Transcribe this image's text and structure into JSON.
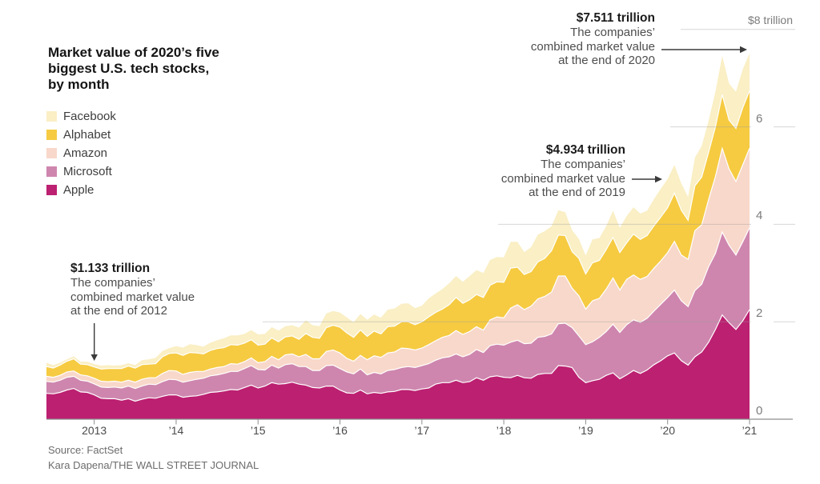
{
  "header": {
    "title_lines": {
      "l1": "Market value of 2020’s five",
      "l2": "biggest U.S. tech stocks,",
      "l3": "by month"
    }
  },
  "annotations": {
    "end2020": {
      "value": "$7.511 trillion",
      "l1": "The companies’",
      "l2": "combined market value",
      "l3": "at the end of 2020"
    },
    "end2019": {
      "value": "$4.934 trillion",
      "l1": "The companies’",
      "l2": "combined market value",
      "l3": "at the end of 2019"
    },
    "end2012": {
      "value": "$1.133 trillion",
      "l1": "The companies’",
      "l2": "combined market value",
      "l3": "at the end of 2012"
    }
  },
  "footer": {
    "source": "Source: FactSet",
    "credit": "Kara Dapena/THE WALL STREET JOURNAL"
  },
  "chart_data": {
    "type": "area",
    "stacked": true,
    "title": "Market value of 2020’s five biggest U.S. tech stocks, by month",
    "x_unit": "month",
    "x_range": [
      "2012-05",
      "2020-12"
    ],
    "ylim": [
      0,
      8
    ],
    "y_unit": "trillion USD",
    "grid": "partial-right",
    "legend_position": "top-left",
    "y_ticks": [
      {
        "v": 8,
        "label": "$8 trillion"
      },
      {
        "v": 6,
        "label": "6"
      },
      {
        "v": 4,
        "label": "4"
      },
      {
        "v": 2,
        "label": "2"
      },
      {
        "v": 0,
        "label": "0"
      }
    ],
    "x_ticks": [
      {
        "i": 7,
        "label": "2013"
      },
      {
        "i": 19,
        "label": "’14"
      },
      {
        "i": 31,
        "label": "’15"
      },
      {
        "i": 43,
        "label": "’16"
      },
      {
        "i": 55,
        "label": "’17"
      },
      {
        "i": 67,
        "label": "’18"
      },
      {
        "i": 79,
        "label": "’19"
      },
      {
        "i": 91,
        "label": "’20"
      },
      {
        "i": 103,
        "label": "’21"
      }
    ],
    "stack_bottom_to_top": [
      "Apple",
      "Microsoft",
      "Amazon",
      "Alphabet",
      "Facebook"
    ],
    "key_points": [
      {
        "date": "2012-12",
        "total": 1.133
      },
      {
        "date": "2019-12",
        "total": 4.934
      },
      {
        "date": "2020-12",
        "total": 7.511
      }
    ],
    "series": [
      {
        "name": "Facebook",
        "color": "#FAEFC5",
        "values": [
          0.08,
          0.06,
          0.05,
          0.04,
          0.05,
          0.05,
          0.06,
          0.06,
          0.07,
          0.07,
          0.06,
          0.07,
          0.06,
          0.06,
          0.09,
          0.1,
          0.12,
          0.12,
          0.11,
          0.14,
          0.16,
          0.17,
          0.16,
          0.15,
          0.16,
          0.17,
          0.19,
          0.19,
          0.2,
          0.19,
          0.2,
          0.22,
          0.21,
          0.22,
          0.23,
          0.22,
          0.22,
          0.24,
          0.27,
          0.25,
          0.25,
          0.29,
          0.29,
          0.3,
          0.32,
          0.31,
          0.33,
          0.34,
          0.34,
          0.33,
          0.35,
          0.36,
          0.37,
          0.38,
          0.34,
          0.33,
          0.38,
          0.39,
          0.41,
          0.44,
          0.44,
          0.44,
          0.49,
          0.5,
          0.5,
          0.52,
          0.51,
          0.51,
          0.54,
          0.52,
          0.46,
          0.5,
          0.56,
          0.56,
          0.5,
          0.51,
          0.48,
          0.44,
          0.4,
          0.38,
          0.48,
          0.46,
          0.48,
          0.55,
          0.51,
          0.55,
          0.55,
          0.53,
          0.51,
          0.55,
          0.58,
          0.59,
          0.58,
          0.55,
          0.48,
          0.58,
          0.64,
          0.65,
          0.72,
          0.8,
          0.75,
          0.75,
          0.79,
          0.77
        ]
      },
      {
        "name": "Alphabet",
        "color": "#F6CB41",
        "values": [
          0.2,
          0.19,
          0.21,
          0.22,
          0.25,
          0.22,
          0.23,
          0.232,
          0.25,
          0.27,
          0.26,
          0.28,
          0.29,
          0.29,
          0.3,
          0.28,
          0.29,
          0.34,
          0.35,
          0.37,
          0.39,
          0.41,
          0.38,
          0.36,
          0.38,
          0.39,
          0.39,
          0.39,
          0.39,
          0.38,
          0.37,
          0.36,
          0.36,
          0.38,
          0.37,
          0.37,
          0.37,
          0.36,
          0.43,
          0.44,
          0.42,
          0.49,
          0.51,
          0.53,
          0.52,
          0.49,
          0.52,
          0.48,
          0.51,
          0.48,
          0.54,
          0.53,
          0.54,
          0.55,
          0.52,
          0.54,
          0.57,
          0.58,
          0.58,
          0.63,
          0.68,
          0.64,
          0.65,
          0.66,
          0.67,
          0.71,
          0.72,
          0.73,
          0.82,
          0.77,
          0.72,
          0.71,
          0.76,
          0.78,
          0.85,
          0.84,
          0.83,
          0.75,
          0.77,
          0.72,
          0.78,
          0.78,
          0.81,
          0.83,
          0.77,
          0.75,
          0.84,
          0.82,
          0.84,
          0.87,
          0.9,
          0.92,
          0.99,
          0.92,
          0.8,
          0.92,
          0.98,
          0.97,
          1.02,
          1.1,
          1.0,
          1.09,
          1.17,
          1.18
        ]
      },
      {
        "name": "Amazon",
        "color": "#F8D8CA",
        "values": [
          0.105,
          0.1,
          0.1,
          0.11,
          0.11,
          0.11,
          0.11,
          0.115,
          0.12,
          0.12,
          0.12,
          0.12,
          0.12,
          0.13,
          0.14,
          0.13,
          0.14,
          0.17,
          0.18,
          0.18,
          0.16,
          0.17,
          0.16,
          0.14,
          0.14,
          0.15,
          0.14,
          0.16,
          0.15,
          0.14,
          0.16,
          0.14,
          0.17,
          0.18,
          0.17,
          0.2,
          0.2,
          0.2,
          0.25,
          0.24,
          0.24,
          0.29,
          0.31,
          0.32,
          0.28,
          0.26,
          0.28,
          0.31,
          0.34,
          0.34,
          0.36,
          0.36,
          0.4,
          0.37,
          0.36,
          0.36,
          0.39,
          0.4,
          0.42,
          0.44,
          0.48,
          0.46,
          0.47,
          0.47,
          0.46,
          0.53,
          0.56,
          0.56,
          0.7,
          0.73,
          0.7,
          0.76,
          0.79,
          0.82,
          0.86,
          0.98,
          0.97,
          0.81,
          0.82,
          0.73,
          0.84,
          0.8,
          0.87,
          0.95,
          0.87,
          0.93,
          0.92,
          0.88,
          0.86,
          0.88,
          0.89,
          0.92,
          1.0,
          0.94,
          0.97,
          1.23,
          1.22,
          1.38,
          1.58,
          1.72,
          1.57,
          1.51,
          1.58,
          1.63
        ]
      },
      {
        "name": "Microsoft",
        "color": "#CE86AE",
        "values": [
          0.245,
          0.24,
          0.25,
          0.26,
          0.25,
          0.24,
          0.23,
          0.225,
          0.23,
          0.23,
          0.24,
          0.25,
          0.26,
          0.26,
          0.27,
          0.28,
          0.28,
          0.3,
          0.32,
          0.31,
          0.31,
          0.32,
          0.34,
          0.33,
          0.34,
          0.35,
          0.36,
          0.37,
          0.38,
          0.39,
          0.4,
          0.38,
          0.33,
          0.36,
          0.33,
          0.39,
          0.38,
          0.36,
          0.38,
          0.35,
          0.36,
          0.42,
          0.43,
          0.44,
          0.43,
          0.4,
          0.43,
          0.39,
          0.41,
          0.4,
          0.44,
          0.45,
          0.45,
          0.47,
          0.47,
          0.48,
          0.5,
          0.49,
          0.51,
          0.53,
          0.54,
          0.53,
          0.56,
          0.58,
          0.57,
          0.64,
          0.65,
          0.66,
          0.73,
          0.72,
          0.7,
          0.72,
          0.76,
          0.76,
          0.81,
          0.86,
          0.88,
          0.82,
          0.85,
          0.78,
          0.8,
          0.86,
          0.9,
          1.0,
          0.95,
          1.03,
          1.04,
          1.05,
          1.06,
          1.1,
          1.16,
          1.2,
          1.29,
          1.23,
          1.2,
          1.36,
          1.39,
          1.55,
          1.56,
          1.7,
          1.59,
          1.53,
          1.62,
          1.68
        ]
      },
      {
        "name": "Apple",
        "color": "#BC2071",
        "values": [
          0.53,
          0.52,
          0.55,
          0.6,
          0.63,
          0.56,
          0.55,
          0.5,
          0.43,
          0.42,
          0.42,
          0.39,
          0.42,
          0.37,
          0.41,
          0.44,
          0.43,
          0.47,
          0.5,
          0.5,
          0.45,
          0.47,
          0.48,
          0.51,
          0.55,
          0.56,
          0.58,
          0.61,
          0.6,
          0.65,
          0.7,
          0.64,
          0.68,
          0.75,
          0.72,
          0.73,
          0.76,
          0.72,
          0.7,
          0.65,
          0.64,
          0.68,
          0.68,
          0.6,
          0.54,
          0.53,
          0.6,
          0.52,
          0.55,
          0.53,
          0.56,
          0.57,
          0.61,
          0.61,
          0.59,
          0.62,
          0.64,
          0.72,
          0.75,
          0.75,
          0.8,
          0.75,
          0.77,
          0.85,
          0.8,
          0.87,
          0.89,
          0.86,
          0.85,
          0.9,
          0.85,
          0.84,
          0.92,
          0.94,
          0.94,
          1.1,
          1.09,
          1.06,
          0.86,
          0.75,
          0.79,
          0.82,
          0.9,
          0.95,
          0.83,
          0.91,
          1.0,
          0.94,
          1.01,
          1.12,
          1.2,
          1.3,
          1.36,
          1.2,
          1.11,
          1.28,
          1.38,
          1.58,
          1.84,
          2.14,
          1.98,
          1.84,
          2.02,
          2.25
        ]
      }
    ]
  }
}
